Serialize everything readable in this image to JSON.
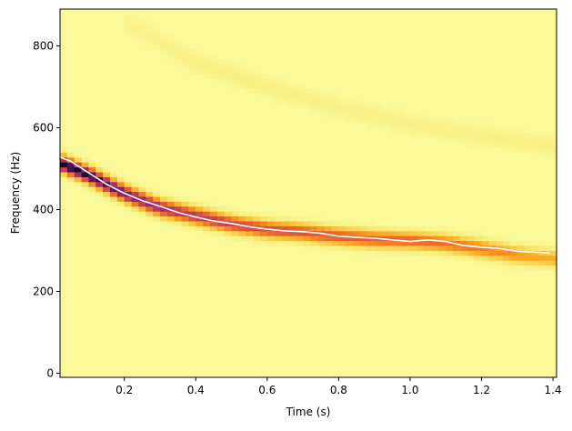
{
  "chart_data": {
    "type": "heatmap",
    "xlabel": "Time (s)",
    "ylabel": "Frequency (Hz)",
    "xlim": [
      0.02,
      1.41
    ],
    "ylim": [
      -10,
      890
    ],
    "x_ticks": [
      0.2,
      0.4,
      0.6,
      0.8,
      1.0,
      1.2,
      1.4
    ],
    "x_tick_labels": [
      "0.2",
      "0.4",
      "0.6",
      "0.8",
      "1.0",
      "1.2",
      "1.4"
    ],
    "y_ticks": [
      0,
      200,
      400,
      600,
      800
    ],
    "y_tick_labels": [
      "0",
      "200",
      "400",
      "600",
      "800"
    ],
    "grid": false,
    "colormap": "inferno (high energy = dark)",
    "background_color": "#fafa9a",
    "heatmap": {
      "time_start": 0.02,
      "time_step": 0.02,
      "n_frames": 70,
      "freq_bin_hz": 12
    },
    "bands": [
      {
        "description": "fundamental",
        "x": [
          0.02,
          0.1,
          0.2,
          0.3,
          0.4,
          0.5,
          0.6,
          0.7,
          0.8,
          0.9,
          1.0,
          1.1,
          1.2,
          1.3,
          1.41
        ],
        "center_hz": [
          515,
          485,
          440,
          405,
          385,
          365,
          352,
          345,
          335,
          328,
          325,
          318,
          305,
          290,
          280
        ],
        "peak_intensity": [
          1.0,
          0.98,
          0.88,
          0.8,
          0.74,
          0.7,
          0.67,
          0.64,
          0.62,
          0.6,
          0.58,
          0.55,
          0.52,
          0.45,
          0.38
        ],
        "width_hz": 22
      },
      {
        "description": "faint harmonic",
        "x": [
          0.2,
          0.4,
          0.6,
          0.8,
          1.0,
          1.2,
          1.41
        ],
        "center_hz": [
          860,
          760,
          700,
          650,
          610,
          580,
          555
        ],
        "peak_intensity": [
          0.08,
          0.12,
          0.12,
          0.1,
          0.1,
          0.1,
          0.12
        ],
        "width_hz": 25
      }
    ],
    "series": [
      {
        "type": "line",
        "color": "#ffffff",
        "x": [
          0.02,
          0.05,
          0.1,
          0.15,
          0.2,
          0.25,
          0.3,
          0.35,
          0.4,
          0.45,
          0.5,
          0.55,
          0.6,
          0.65,
          0.7,
          0.75,
          0.8,
          0.85,
          0.9,
          0.95,
          1.0,
          1.05,
          1.1,
          1.15,
          1.2,
          1.25,
          1.3,
          1.35,
          1.39
        ],
        "y": [
          528,
          518,
          490,
          462,
          440,
          422,
          408,
          393,
          382,
          372,
          366,
          358,
          352,
          348,
          346,
          342,
          335,
          332,
          330,
          326,
          322,
          326,
          322,
          312,
          308,
          305,
          298,
          296,
          294
        ]
      }
    ]
  }
}
